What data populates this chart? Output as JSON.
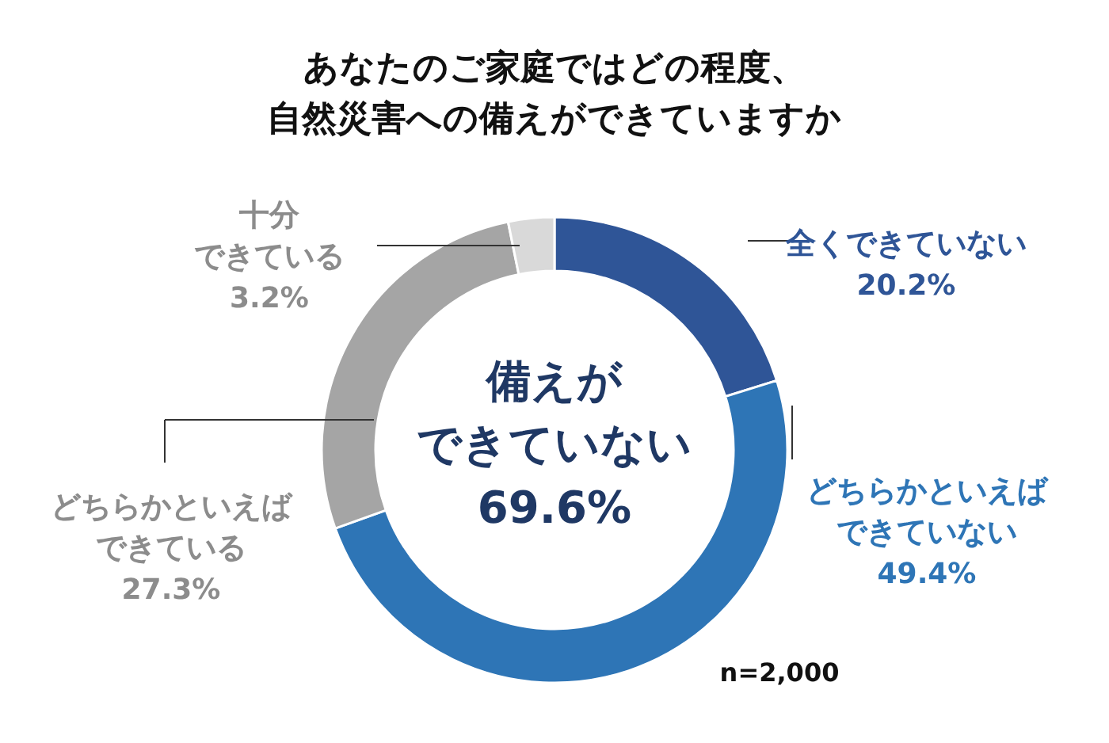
{
  "chart_data": {
    "type": "donut",
    "title": "あなたのご家庭ではどの程度、自然災害への備えができていますか",
    "categories": [
      "全くできていない",
      "どちらかといえばできていない",
      "どちらかといえばできている",
      "十分できている"
    ],
    "values": [
      20.2,
      49.4,
      27.3,
      3.2
    ],
    "colors": [
      "#2f5597",
      "#2e75b6",
      "#a5a5a5",
      "#d9d9d9"
    ],
    "value_labels": [
      "20.2%",
      "49.4%",
      "27.3%",
      "3.2%"
    ],
    "annotations": [
      "備えができていない69.6%",
      "n=2,000"
    ]
  }
}
